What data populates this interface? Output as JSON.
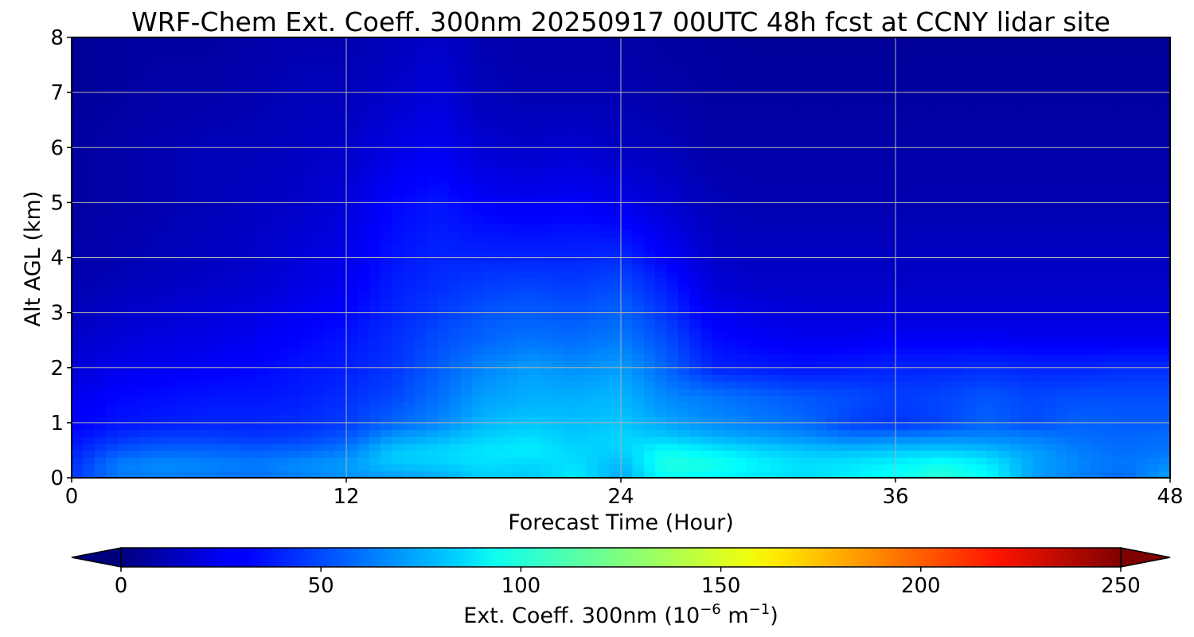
{
  "chart_data": {
    "type": "heatmap",
    "title": "WRF-Chem Ext. Coeff. 300nm  20250917 00UTC 48h fcst at CCNY lidar site",
    "xlabel": "Forecast Time (Hour)",
    "ylabel": "Alt AGL (km)",
    "xlim": [
      0,
      48
    ],
    "ylim": [
      0,
      8
    ],
    "xticks": [
      0,
      12,
      24,
      36,
      48
    ],
    "yticks": [
      0,
      1,
      2,
      3,
      4,
      5,
      6,
      7,
      8
    ],
    "grid": true,
    "colormap": "jet",
    "colorbar": {
      "label_main": "Ext. Coeff. 300nm  (10",
      "label_exp1": "−6",
      "label_mid": " m",
      "label_exp2": "−1",
      "label_end": ")",
      "min": 0,
      "max": 250,
      "ticks": [
        0,
        50,
        100,
        150,
        200,
        250
      ],
      "extend": "both",
      "placement": "bottom"
    },
    "x": [
      0,
      2,
      4,
      6,
      8,
      10,
      12,
      14,
      16,
      18,
      20,
      22,
      24,
      26,
      28,
      30,
      32,
      34,
      36,
      38,
      40,
      42,
      44,
      46,
      48
    ],
    "y": [
      0,
      0.25,
      0.5,
      0.75,
      1.0,
      1.5,
      2.0,
      2.5,
      3.0,
      3.5,
      4.0,
      5.0,
      6.0,
      7.0,
      8.0
    ],
    "z": [
      [
        45,
        60,
        62,
        60,
        58,
        62,
        66,
        68,
        72,
        82,
        80,
        90,
        72,
        96,
        92,
        88,
        84,
        90,
        96,
        105,
        95,
        70,
        62,
        56,
        72
      ],
      [
        42,
        62,
        66,
        64,
        62,
        66,
        70,
        80,
        82,
        86,
        84,
        86,
        76,
        102,
        100,
        92,
        86,
        88,
        92,
        98,
        90,
        72,
        64,
        60,
        66
      ],
      [
        38,
        52,
        56,
        56,
        54,
        56,
        62,
        80,
        84,
        88,
        90,
        84,
        82,
        96,
        90,
        84,
        80,
        78,
        80,
        82,
        78,
        70,
        62,
        58,
        60
      ],
      [
        34,
        42,
        46,
        46,
        44,
        46,
        52,
        68,
        74,
        82,
        86,
        80,
        84,
        80,
        74,
        70,
        66,
        60,
        62,
        64,
        64,
        62,
        58,
        56,
        58
      ],
      [
        30,
        36,
        38,
        40,
        40,
        42,
        46,
        56,
        64,
        76,
        80,
        78,
        80,
        72,
        66,
        62,
        58,
        48,
        44,
        48,
        56,
        50,
        56,
        54,
        54
      ],
      [
        26,
        32,
        34,
        36,
        36,
        38,
        42,
        48,
        58,
        70,
        74,
        74,
        76,
        64,
        60,
        56,
        52,
        50,
        46,
        48,
        52,
        48,
        50,
        50,
        50
      ],
      [
        22,
        26,
        28,
        30,
        32,
        36,
        38,
        44,
        54,
        64,
        70,
        66,
        70,
        56,
        40,
        38,
        36,
        38,
        40,
        40,
        42,
        40,
        40,
        42,
        42
      ],
      [
        18,
        22,
        24,
        26,
        28,
        32,
        36,
        42,
        50,
        56,
        60,
        58,
        62,
        50,
        34,
        30,
        28,
        28,
        30,
        30,
        30,
        28,
        28,
        28,
        28
      ],
      [
        14,
        18,
        20,
        22,
        24,
        28,
        32,
        40,
        46,
        52,
        54,
        52,
        56,
        44,
        28,
        24,
        22,
        22,
        22,
        22,
        22,
        22,
        22,
        22,
        22
      ],
      [
        12,
        14,
        16,
        18,
        20,
        24,
        28,
        38,
        42,
        46,
        48,
        46,
        50,
        38,
        22,
        18,
        18,
        18,
        18,
        18,
        18,
        18,
        18,
        18,
        18
      ],
      [
        10,
        12,
        14,
        16,
        18,
        22,
        26,
        36,
        40,
        40,
        40,
        40,
        42,
        30,
        18,
        16,
        16,
        16,
        16,
        16,
        16,
        16,
        16,
        16,
        16
      ],
      [
        8,
        10,
        12,
        14,
        16,
        18,
        22,
        32,
        36,
        30,
        28,
        30,
        26,
        20,
        14,
        12,
        12,
        12,
        12,
        12,
        12,
        12,
        12,
        12,
        12
      ],
      [
        8,
        10,
        12,
        14,
        14,
        16,
        18,
        24,
        28,
        20,
        18,
        20,
        16,
        14,
        10,
        10,
        10,
        10,
        10,
        10,
        10,
        10,
        10,
        10,
        10
      ],
      [
        6,
        8,
        10,
        10,
        12,
        14,
        14,
        18,
        22,
        14,
        12,
        12,
        12,
        10,
        8,
        8,
        8,
        8,
        8,
        8,
        8,
        8,
        8,
        8,
        8
      ],
      [
        6,
        8,
        8,
        8,
        10,
        12,
        12,
        14,
        18,
        12,
        10,
        10,
        10,
        8,
        8,
        6,
        6,
        6,
        6,
        6,
        6,
        6,
        6,
        6,
        6
      ]
    ]
  }
}
